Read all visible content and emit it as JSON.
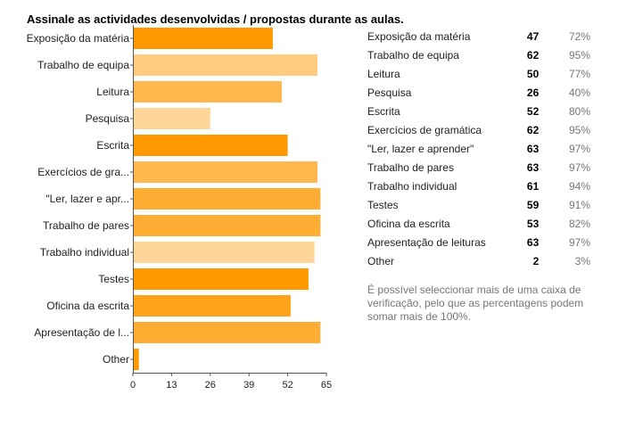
{
  "question_title": "Assinale as actividades desenvolvidas / propostas durante as aulas.",
  "chart_data": {
    "type": "bar",
    "orientation": "horizontal",
    "title": "Assinale as actividades desenvolvidas / propostas durante as aulas.",
    "categories": [
      "Exposição da matéria",
      "Trabalho de equipa",
      "Leitura",
      "Pesquisa",
      "Escrita",
      "Exercícios de gra...",
      "\"Ler, lazer e apr...",
      "Trabalho de pares",
      "Trabalho individual",
      "Testes",
      "Oficina da escrita",
      "Apresentação de l...",
      "Other"
    ],
    "values": [
      47,
      62,
      50,
      26,
      52,
      62,
      63,
      63,
      61,
      59,
      53,
      63,
      2
    ],
    "bar_colors": [
      "#ff9900",
      "#ffcc80",
      "#ffb84d",
      "#ffd699",
      "#ff9900",
      "#ffb84d",
      "#ffad33",
      "#ffad33",
      "#ffd699",
      "#ff9900",
      "#ffa31a",
      "#ffad33",
      "#ff9900"
    ],
    "xticks": [
      0,
      13,
      26,
      39,
      52,
      65
    ],
    "xlim": [
      0,
      65
    ],
    "xlabel": "",
    "ylabel": "",
    "grid": false
  },
  "stats": [
    {
      "label": "Exposição da matéria",
      "count": "47",
      "percent": "72%"
    },
    {
      "label": "Trabalho de equipa",
      "count": "62",
      "percent": "95%"
    },
    {
      "label": "Leitura",
      "count": "50",
      "percent": "77%"
    },
    {
      "label": "Pesquisa",
      "count": "26",
      "percent": "40%"
    },
    {
      "label": "Escrita",
      "count": "52",
      "percent": "80%"
    },
    {
      "label": "Exercícios de gramática",
      "count": "62",
      "percent": "95%"
    },
    {
      "label": "\"Ler, lazer e aprender\"",
      "count": "63",
      "percent": "97%"
    },
    {
      "label": "Trabalho de pares",
      "count": "63",
      "percent": "97%"
    },
    {
      "label": "Trabalho individual",
      "count": "61",
      "percent": "94%"
    },
    {
      "label": "Testes",
      "count": "59",
      "percent": "91%"
    },
    {
      "label": "Oficina da escrita",
      "count": "53",
      "percent": "82%"
    },
    {
      "label": "Apresentação de leituras",
      "count": "63",
      "percent": "97%"
    },
    {
      "label": "Other",
      "count": "2",
      "percent": "3%"
    }
  ],
  "note": "É possível seleccionar mais de uma caixa de verificação, pelo que as percentagens podem somar mais de 100%.",
  "colors": {
    "axis": "#555555",
    "text": "#222222",
    "muted": "#777777"
  }
}
